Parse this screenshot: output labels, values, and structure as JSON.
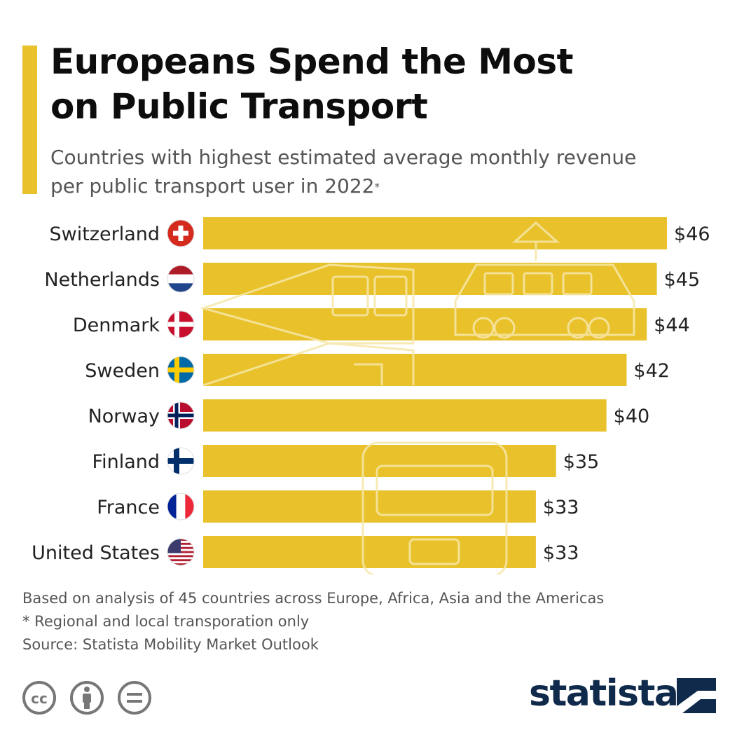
{
  "title_line1": "Europeans Spend the Most",
  "title_line2": "on Public Transport",
  "subtitle_line1": "Countries with highest estimated average monthly revenue",
  "subtitle_line2": "per public transport user in 2022",
  "subtitle_marker": "*",
  "notes": {
    "analysis": "Based on analysis of 45 countries across Europe, Africa, Asia and the Americas",
    "footnote": "* Regional and local transporation only",
    "source": "Source: Statista Mobility Market Outlook"
  },
  "brand": "statista",
  "colors": {
    "bar": "#e9c22b",
    "accent": "#e9c22b",
    "brand": "#0f2a4a"
  },
  "license_icons": [
    "cc-icon",
    "attribution-icon",
    "no-derivatives-icon"
  ],
  "chart_data": {
    "type": "bar",
    "orientation": "horizontal",
    "categories": [
      "Switzerland",
      "Netherlands",
      "Denmark",
      "Sweden",
      "Norway",
      "Finland",
      "France",
      "United States"
    ],
    "values": [
      46,
      45,
      44,
      42,
      40,
      35,
      33,
      33
    ],
    "value_labels": [
      "$46",
      "$45",
      "$44",
      "$42",
      "$40",
      "$35",
      "$33",
      "$33"
    ],
    "flags": [
      "switzerland-flag-icon",
      "netherlands-flag-icon",
      "denmark-flag-icon",
      "sweden-flag-icon",
      "norway-flag-icon",
      "finland-flag-icon",
      "france-flag-icon",
      "united-states-flag-icon"
    ],
    "unit": "$",
    "grid": false,
    "legend": "none"
  }
}
